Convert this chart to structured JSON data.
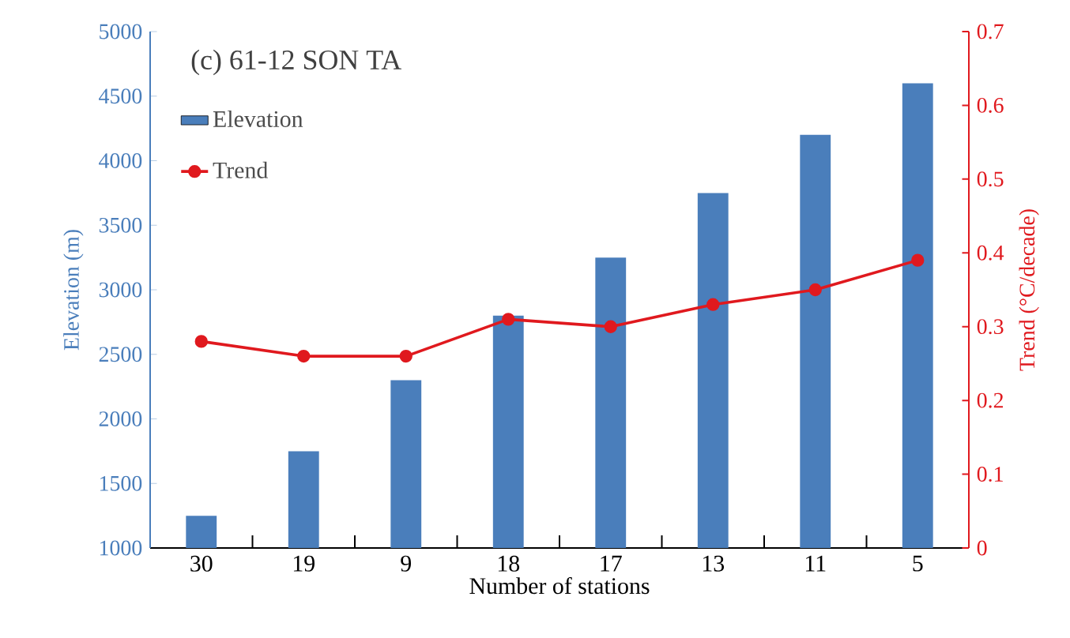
{
  "chart_data": {
    "type": "bar",
    "title": "(c) 61-12 SON TA",
    "xlabel": "Number of stations",
    "ylabel": "Elevation (m)",
    "y2label": "Trend (°C/decade)",
    "categories": [
      "30",
      "19",
      "9",
      "18",
      "17",
      "13",
      "11",
      "5"
    ],
    "series": [
      {
        "name": "Elevation",
        "color": "#4a7ebb",
        "values": [
          1250,
          1750,
          2300,
          2800,
          3250,
          3750,
          4200,
          4600
        ]
      },
      {
        "name": "Trend",
        "type": "line",
        "axis": "y2",
        "color": "#e0191e",
        "marker": "circle",
        "line_style": "solid",
        "values": [
          0.28,
          0.26,
          0.26,
          0.31,
          0.3,
          0.33,
          0.35,
          0.39
        ]
      }
    ],
    "ylim": [
      1000,
      5000
    ],
    "yticks": [
      1000,
      1500,
      2000,
      2500,
      3000,
      3500,
      4000,
      4500,
      5000
    ],
    "y2lim": [
      0,
      0.7
    ],
    "y2ticks": [
      0,
      0.1,
      0.2,
      0.3,
      0.4,
      0.5,
      0.6,
      0.7
    ],
    "legend": "top left"
  }
}
